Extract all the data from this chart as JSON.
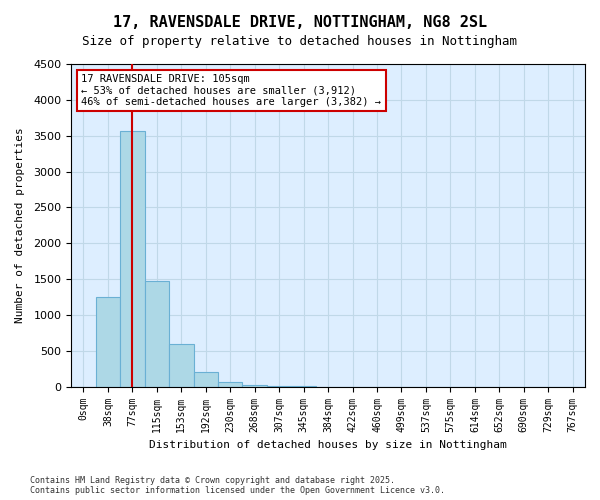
{
  "title": "17, RAVENSDALE DRIVE, NOTTINGHAM, NG8 2SL",
  "subtitle": "Size of property relative to detached houses in Nottingham",
  "xlabel": "Distribution of detached houses by size in Nottingham",
  "ylabel": "Number of detached properties",
  "bar_color": "#add8e6",
  "bar_edge_color": "#6ab0d4",
  "grid_color": "#c0d8e8",
  "background_color": "#ddeeff",
  "annotation_box_color": "#cc0000",
  "vline_color": "#cc0000",
  "categories": [
    "0sqm",
    "38sqm",
    "77sqm",
    "115sqm",
    "153sqm",
    "192sqm",
    "230sqm",
    "268sqm",
    "307sqm",
    "345sqm",
    "384sqm",
    "422sqm",
    "460sqm",
    "499sqm",
    "537sqm",
    "575sqm",
    "614sqm",
    "652sqm",
    "690sqm",
    "729sqm",
    "767sqm"
  ],
  "values": [
    0,
    1250,
    3560,
    1480,
    590,
    210,
    60,
    20,
    8,
    4,
    2,
    1,
    1,
    0,
    0,
    0,
    0,
    0,
    0,
    0,
    0
  ],
  "ylim": [
    0,
    4500
  ],
  "yticks": [
    0,
    500,
    1000,
    1500,
    2000,
    2500,
    3000,
    3500,
    4000,
    4500
  ],
  "property_size": 105,
  "property_bin_index": 2,
  "annotation_title": "17 RAVENSDALE DRIVE: 105sqm",
  "annotation_line1": "← 53% of detached houses are smaller (3,912)",
  "annotation_line2": "46% of semi-detached houses are larger (3,382) →",
  "footer_line1": "Contains HM Land Registry data © Crown copyright and database right 2025.",
  "footer_line2": "Contains public sector information licensed under the Open Government Licence v3.0."
}
